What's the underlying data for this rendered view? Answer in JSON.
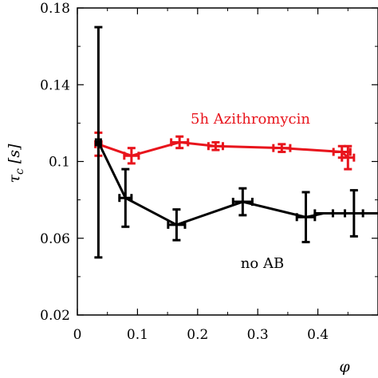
{
  "chart_data": {
    "type": "line",
    "xlabel": "φ",
    "ylabel": "τ",
    "ylabel_sub": "c",
    "ylabel_unit": "[s]",
    "xlim": [
      0,
      0.5
    ],
    "ylim": [
      0.02,
      0.18
    ],
    "xticks": [
      0,
      0.1,
      0.2,
      0.3,
      0.4
    ],
    "xtick_labels": [
      "0",
      "0.1",
      "0.2",
      "0.3",
      "0.4"
    ],
    "yticks": [
      0.02,
      0.06,
      0.1,
      0.14,
      0.18
    ],
    "ytick_labels": [
      "0.02",
      "0.06",
      "0.1",
      "0.14",
      "0.18"
    ],
    "grid": false,
    "series": [
      {
        "name": "5h Azithromycin",
        "color": "#e8141c",
        "points": [
          {
            "x": 0.035,
            "y": 0.109,
            "xerr": 0.005,
            "yerr": 0.006
          },
          {
            "x": 0.09,
            "y": 0.103,
            "xerr": 0.012,
            "yerr": 0.004
          },
          {
            "x": 0.17,
            "y": 0.11,
            "xerr": 0.014,
            "yerr": 0.003
          },
          {
            "x": 0.23,
            "y": 0.108,
            "xerr": 0.012,
            "yerr": 0.002
          },
          {
            "x": 0.34,
            "y": 0.107,
            "xerr": 0.014,
            "yerr": 0.002
          },
          {
            "x": 0.44,
            "y": 0.105,
            "xerr": 0.014,
            "yerr": 0.003
          },
          {
            "x": 0.45,
            "y": 0.102,
            "xerr": 0.01,
            "yerr": 0.006
          }
        ]
      },
      {
        "name": "no AB",
        "color": "#000000",
        "points": [
          {
            "x": 0.035,
            "y": 0.11,
            "xerr": 0.004,
            "yerr": 0.06
          },
          {
            "x": 0.08,
            "y": 0.081,
            "xerr": 0.01,
            "yerr": 0.015
          },
          {
            "x": 0.165,
            "y": 0.067,
            "xerr": 0.014,
            "yerr": 0.008
          },
          {
            "x": 0.275,
            "y": 0.079,
            "xerr": 0.016,
            "yerr": 0.007
          },
          {
            "x": 0.38,
            "y": 0.071,
            "xerr": 0.015,
            "yerr": 0.013
          },
          {
            "x": 0.41,
            "y": 0.073,
            "xerr": 0.015,
            "yerr": 0.0
          },
          {
            "x": 0.46,
            "y": 0.073,
            "xerr": 0.015,
            "yerr": 0.012
          },
          {
            "x": 0.5,
            "y": 0.073,
            "xerr": 0.0,
            "yerr": 0.0
          }
        ]
      }
    ]
  }
}
